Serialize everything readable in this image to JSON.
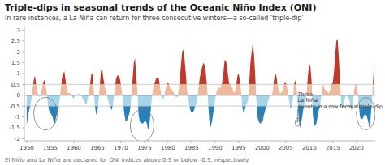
{
  "chart_data": {
    "type": "area",
    "title": "Triple-dips in seasonal trends of the Oceanic Niño Index (ONI)",
    "subtitle": "In rare instances, a La Niña can return for three consecutive winters—a so-called ‘triple-dip’",
    "footer": "El Niño and La Niña are declared for ONI indices above 0.5 or below -0.5, respectively",
    "x": [
      1950,
      1950.25,
      1950.5,
      1950.75,
      1951,
      1951.25,
      1951.5,
      1951.75,
      1952,
      1952.25,
      1952.5,
      1952.75,
      1953,
      1953.25,
      1953.5,
      1953.75,
      1954,
      1954.25,
      1954.5,
      1954.75,
      1955,
      1955.25,
      1955.5,
      1955.75,
      1956,
      1956.25,
      1956.5,
      1956.75,
      1957,
      1957.25,
      1957.5,
      1957.75,
      1958,
      1958.25,
      1958.5,
      1958.75,
      1959,
      1959.25,
      1959.5,
      1959.75,
      1960,
      1960.25,
      1960.5,
      1960.75,
      1961,
      1961.25,
      1961.5,
      1961.75,
      1962,
      1962.25,
      1962.5,
      1962.75,
      1963,
      1963.25,
      1963.5,
      1963.75,
      1964,
      1964.25,
      1964.5,
      1964.75,
      1965,
      1965.25,
      1965.5,
      1965.75,
      1966,
      1966.25,
      1966.5,
      1966.75,
      1967,
      1967.25,
      1967.5,
      1967.75,
      1968,
      1968.25,
      1968.5,
      1968.75,
      1969,
      1969.25,
      1969.5,
      1969.75,
      1970,
      1970.25,
      1970.5,
      1970.75,
      1971,
      1971.25,
      1971.5,
      1971.75,
      1972,
      1972.25,
      1972.5,
      1972.75,
      1973,
      1973.25,
      1973.5,
      1973.75,
      1974,
      1974.25,
      1974.5,
      1974.75,
      1975,
      1975.25,
      1975.5,
      1975.75,
      1976,
      1976.25,
      1976.5,
      1976.75,
      1977,
      1977.25,
      1977.5,
      1977.75,
      1978,
      1978.25,
      1978.5,
      1978.75,
      1979,
      1979.25,
      1979.5,
      1979.75,
      1980,
      1980.25,
      1980.5,
      1980.75,
      1981,
      1981.25,
      1981.5,
      1981.75,
      1982,
      1982.25,
      1982.5,
      1982.75,
      1983,
      1983.25,
      1983.5,
      1983.75,
      1984,
      1984.25,
      1984.5,
      1984.75,
      1985,
      1985.25,
      1985.5,
      1985.75,
      1986,
      1986.25,
      1986.5,
      1986.75,
      1987,
      1987.25,
      1987.5,
      1987.75,
      1988,
      1988.25,
      1988.5,
      1988.75,
      1989,
      1989.25,
      1989.5,
      1989.75,
      1990,
      1990.25,
      1990.5,
      1990.75,
      1991,
      1991.25,
      1991.5,
      1991.75,
      1992,
      1992.25,
      1992.5,
      1992.75,
      1993,
      1993.25,
      1993.5,
      1993.75,
      1994,
      1994.25,
      1994.5,
      1994.75,
      1995,
      1995.25,
      1995.5,
      1995.75,
      1996,
      1996.25,
      1996.5,
      1996.75,
      1997,
      1997.25,
      1997.5,
      1997.75,
      1998,
      1998.25,
      1998.5,
      1998.75,
      1999,
      1999.25,
      1999.5,
      1999.75,
      2000,
      2000.25,
      2000.5,
      2000.75,
      2001,
      2001.25,
      2001.5,
      2001.75,
      2002,
      2002.25,
      2002.5,
      2002.75,
      2003,
      2003.25,
      2003.5,
      2003.75,
      2004,
      2004.25,
      2004.5,
      2004.75,
      2005,
      2005.25,
      2005.5,
      2005.75,
      2006,
      2006.25,
      2006.5,
      2006.75,
      2007,
      2007.25,
      2007.5,
      2007.75,
      2008,
      2008.25,
      2008.5,
      2008.75,
      2009,
      2009.25,
      2009.5,
      2009.75,
      2010,
      2010.25,
      2010.5,
      2010.75,
      2011,
      2011.25,
      2011.5,
      2011.75,
      2012,
      2012.25,
      2012.5,
      2012.75,
      2013,
      2013.25,
      2013.5,
      2013.75,
      2014,
      2014.25,
      2014.5,
      2014.75,
      2015,
      2015.25,
      2015.5,
      2015.75,
      2016,
      2016.25,
      2016.5,
      2016.75,
      2017,
      2017.25,
      2017.5,
      2017.75,
      2018,
      2018.25,
      2018.5,
      2018.75,
      2019,
      2019.25,
      2019.5,
      2019.75,
      2020,
      2020.25,
      2020.5,
      2020.75,
      2021,
      2021.25,
      2021.5,
      2021.75,
      2022,
      2022.25,
      2022.5,
      2022.75,
      2023,
      2023.25,
      2023.5,
      2023.75
    ],
    "values": [
      -1.4,
      -1.0,
      -0.7,
      -0.5,
      -0.2,
      0.3,
      0.7,
      0.9,
      0.5,
      0.2,
      0.0,
      -0.1,
      0.1,
      0.3,
      0.6,
      0.7,
      0.5,
      0.1,
      -0.4,
      -0.7,
      -0.8,
      -0.9,
      -1.0,
      -1.3,
      -1.3,
      -1.0,
      -0.8,
      -0.6,
      -0.2,
      0.3,
      0.8,
      1.0,
      1.1,
      0.7,
      0.3,
      0.1,
      0.1,
      0.1,
      0.0,
      -0.1,
      -0.2,
      0.0,
      0.1,
      0.0,
      0.1,
      0.0,
      0.0,
      -0.1,
      -0.2,
      -0.3,
      -0.4,
      -0.4,
      -0.1,
      0.2,
      0.6,
      1.0,
      1.0,
      0.2,
      -0.5,
      -0.9,
      -0.8,
      -0.3,
      0.4,
      1.1,
      1.3,
      0.8,
      0.5,
      0.2,
      -0.0,
      -0.2,
      -0.4,
      -0.5,
      -0.7,
      -0.5,
      -0.1,
      0.4,
      0.8,
      0.9,
      0.9,
      0.8,
      0.5,
      0.1,
      -0.4,
      -0.9,
      -1.2,
      -1.2,
      -1.0,
      -0.9,
      -0.6,
      0.0,
      0.8,
      1.5,
      1.7,
      0.9,
      0.2,
      -0.9,
      -1.2,
      -1.3,
      -1.3,
      -1.3,
      -1.2,
      -1.2,
      -1.3,
      -1.6,
      -1.5,
      -0.9,
      -0.3,
      0.2,
      0.5,
      0.6,
      0.8,
      0.8,
      0.8,
      0.5,
      0.1,
      -0.2,
      -0.2,
      0.0,
      0.3,
      0.5,
      0.6,
      0.5,
      0.3,
      0.3,
      0.2,
      0.1,
      0.0,
      -0.1,
      -0.1,
      0.2,
      0.7,
      1.4,
      2.0,
      2.1,
      1.7,
      1.1,
      0.4,
      -0.1,
      -0.4,
      -0.7,
      -0.8,
      -0.8,
      -0.7,
      -0.5,
      -0.4,
      -0.2,
      0.4,
      0.8,
      1.1,
      1.3,
      1.5,
      1.4,
      1.1,
      0.5,
      -0.3,
      -1.1,
      -1.5,
      -1.3,
      -1.0,
      -0.6,
      -0.2,
      0.1,
      0.3,
      0.4,
      0.3,
      0.4,
      0.6,
      1.0,
      1.6,
      1.6,
      1.4,
      0.9,
      0.5,
      0.5,
      0.4,
      0.3,
      0.1,
      0.2,
      0.5,
      0.9,
      1.0,
      0.7,
      0.2,
      -0.5,
      -0.8,
      -0.7,
      -0.5,
      -0.4,
      -0.2,
      0.6,
      1.5,
      2.0,
      2.4,
      1.9,
      1.0,
      -0.2,
      -1.0,
      -1.2,
      -1.3,
      -1.3,
      -1.2,
      -1.0,
      -0.8,
      -0.6,
      -0.5,
      -0.3,
      -0.1,
      0.0,
      0.0,
      0.2,
      0.7,
      1.0,
      0.9,
      0.5,
      0.2,
      0.1,
      0.1,
      0.2,
      0.4,
      0.6,
      0.6,
      0.4,
      0.1,
      -0.3,
      -0.6,
      -0.5,
      -0.2,
      0.5,
      0.7,
      0.4,
      -0.2,
      -1.1,
      -1.5,
      -1.3,
      -1.0,
      -0.6,
      -0.4,
      -0.2,
      0.3,
      1.0,
      1.5,
      1.3,
      0.6,
      -0.9,
      -1.4,
      -1.4,
      -1.3,
      -1.0,
      -0.7,
      -0.5,
      -0.1,
      0.3,
      0.5,
      0.3,
      0.2,
      0.2,
      0.1,
      0.1,
      0.3,
      0.5,
      0.6,
      1.1,
      1.9,
      2.5,
      2.6,
      1.8,
      0.8,
      -0.3,
      -0.6,
      -0.5,
      -0.2,
      0.0,
      0.0,
      -0.1,
      -0.2,
      -0.5,
      -0.7,
      -0.4,
      0.2,
      0.5,
      0.5,
      0.2,
      -0.4,
      -1.0,
      -1.1,
      -1.1,
      -1.0,
      -0.9,
      -0.9,
      -1.0,
      -1.2,
      -1.5,
      -1.1,
      -0.4,
      0.5,
      1.5
    ],
    "bands": [
      {
        "low": 0.5,
        "high": null,
        "color": "#c0392b"
      },
      {
        "low": 0.0,
        "high": 0.5,
        "color": "#f0b89a"
      },
      {
        "low": -0.5,
        "high": 0.0,
        "color": "#a8d4e8"
      },
      {
        "low": null,
        "high": -0.5,
        "color": "#2980b9"
      }
    ],
    "reference_lines": [
      0.0,
      0.5,
      -0.5
    ],
    "ellipses": [
      {
        "x": 1954.0,
        "y": -0.85,
        "width": 5.0,
        "height": 1.5
      },
      {
        "x": 1974.5,
        "y": -1.4,
        "width": 5.0,
        "height": 1.5
      },
      {
        "x": 2022.0,
        "y": -0.85,
        "width": 4.0,
        "height": 1.5
      },
      {
        "x": 1999.7,
        "y": -1.05,
        "width": 1.0,
        "height": 0.35
      },
      {
        "x": 2007.5,
        "y": -1.25,
        "width": 1.0,
        "height": 0.35
      }
    ],
    "annotation": {
      "text": "Three\nLa Niña\nevents in a row form a triple-dip",
      "x": 2007.5,
      "y": -1.25,
      "text_x": 2009.5,
      "text_y": -0.65
    },
    "xlim": [
      1949.5,
      2024
    ],
    "ylim": [
      -2.1,
      3.2
    ],
    "xticks": [
      1950,
      1955,
      1960,
      1965,
      1970,
      1975,
      1980,
      1985,
      1990,
      1995,
      2000,
      2005,
      2010,
      2015,
      2020
    ],
    "yticks": [
      -2.0,
      -1.5,
      -1.0,
      -0.5,
      0.0,
      0.5,
      1.0,
      1.5,
      2.0,
      2.5,
      3.0
    ],
    "grid": false
  }
}
